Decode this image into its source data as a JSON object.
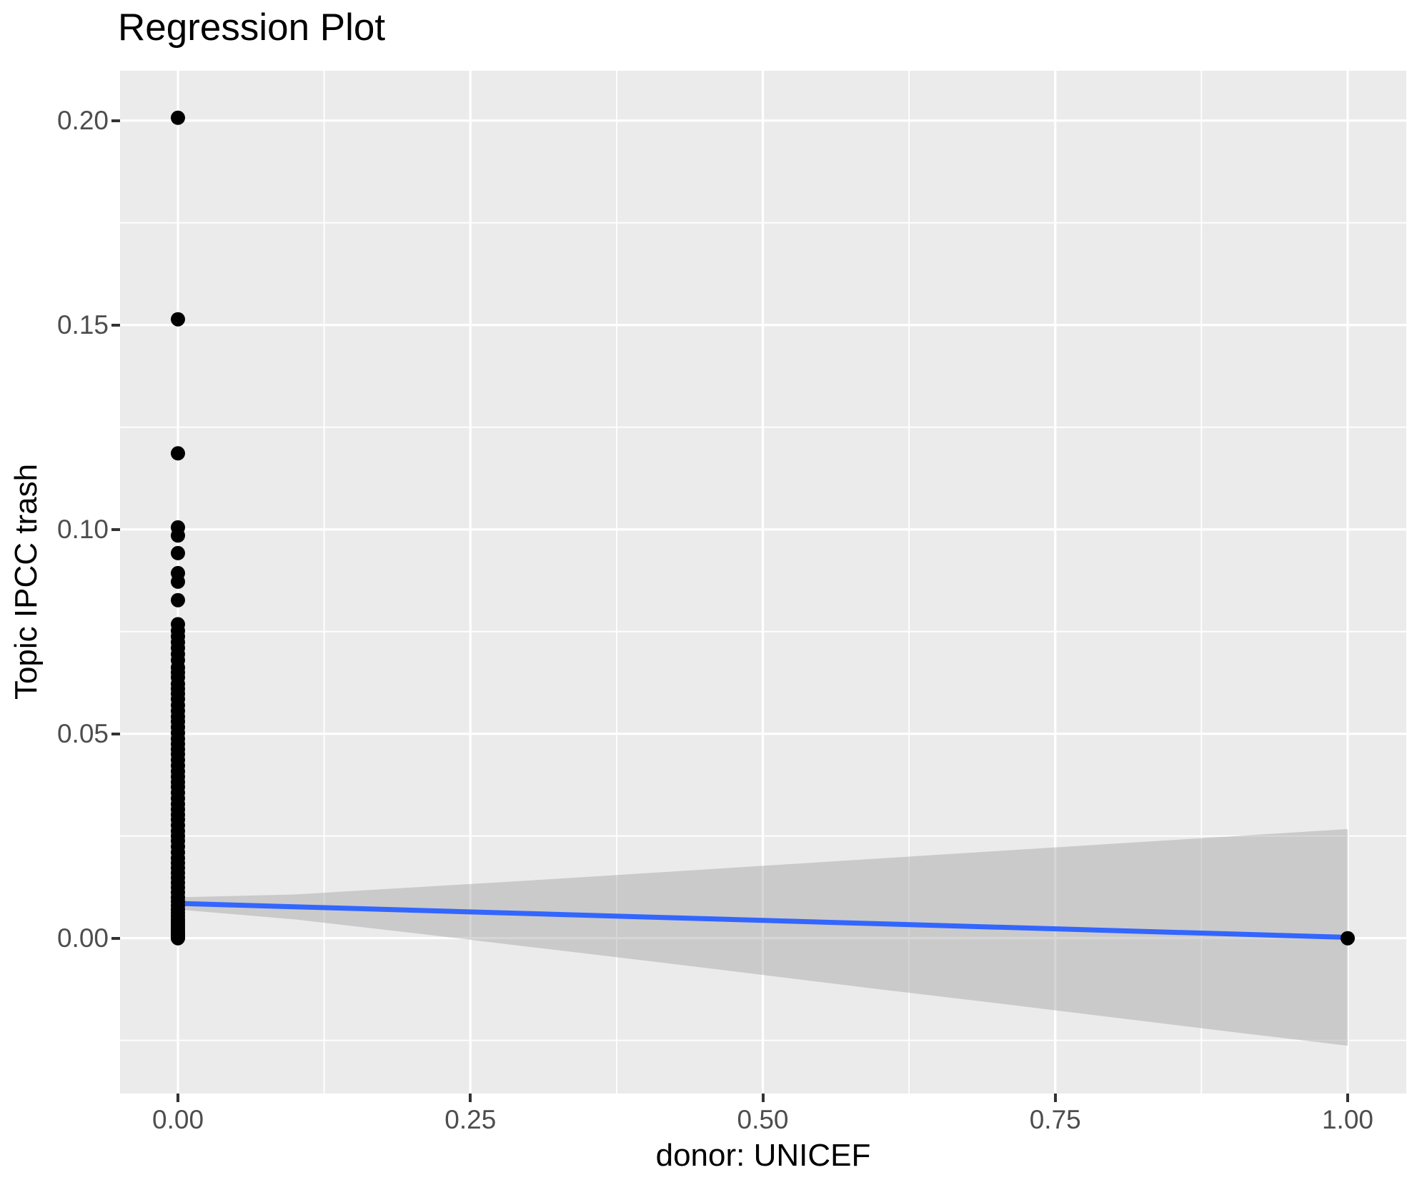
{
  "title": "Regression Plot",
  "chart_data": {
    "type": "scatter",
    "title": "Regression Plot",
    "xlabel": "donor: UNICEF",
    "ylabel": "Topic IPCC trash",
    "grid": true,
    "legend": "none",
    "xlim": [
      -0.0495,
      1.0501
    ],
    "ylim": [
      -0.038,
      0.2122
    ],
    "x_ticks": [
      0.0,
      0.25,
      0.5,
      0.75,
      1.0
    ],
    "x_tick_labels": [
      "0.00",
      "0.25",
      "0.50",
      "0.75",
      "1.00"
    ],
    "y_ticks": [
      0.0,
      0.05,
      0.1,
      0.15,
      0.2
    ],
    "y_tick_labels": [
      "0.00",
      "0.05",
      "0.10",
      "0.15",
      "0.20"
    ],
    "x_minor_ticks": [
      0.125,
      0.375,
      0.625,
      0.875
    ],
    "y_minor_ticks": [
      -0.025,
      0.025,
      0.075,
      0.125,
      0.175
    ],
    "series": [
      {
        "name": "observations",
        "type": "points",
        "color": "#000000",
        "point_radius": 10,
        "groups": [
          {
            "x": 0,
            "ys": [
              0.2007,
              0.1514,
              0.1186,
              0.1005,
              0.0985,
              0.0942,
              0.0893,
              0.0872,
              0.0827,
              0.0768,
              0.0752,
              0.0738,
              0.0724,
              0.071,
              0.0695,
              0.068,
              0.0662,
              0.065,
              0.0638,
              0.0622,
              0.061,
              0.0598,
              0.0585,
              0.057,
              0.0556,
              0.0542,
              0.053,
              0.0516,
              0.0502,
              0.0488,
              0.0475,
              0.0462,
              0.045,
              0.0436,
              0.0422,
              0.0408,
              0.0395,
              0.0382,
              0.037,
              0.0356,
              0.0342,
              0.0328,
              0.0315,
              0.0302,
              0.029,
              0.0276,
              0.0262,
              0.025,
              0.0238,
              0.0224,
              0.021,
              0.0196,
              0.0184,
              0.0172,
              0.016,
              0.0148,
              0.0136,
              0.0124,
              0.0112,
              0.01,
              0.009,
              0.008,
              0.007,
              0.0062,
              0.0054,
              0.0046,
              0.004,
              0.0034,
              0.0028,
              0.0022,
              0.0017,
              0.0012,
              0.0008,
              0.0005,
              0.0003,
              0.0001,
              0.0
            ]
          },
          {
            "x": 1,
            "ys": [
              0.0
            ]
          }
        ]
      },
      {
        "name": "regression-line",
        "type": "line",
        "color": "#3366FF",
        "width": 7,
        "x": [
          0,
          1
        ],
        "y": [
          0.0085,
          0.0002
        ]
      },
      {
        "name": "confidence-band",
        "type": "band",
        "color": "#999999",
        "opacity": 0.4,
        "x": [
          0.0,
          0.1,
          0.2,
          0.3,
          0.4,
          0.5,
          0.6,
          0.7,
          0.8,
          0.9,
          1.0
        ],
        "upper": [
          0.01,
          0.0107,
          0.0124,
          0.0141,
          0.0159,
          0.0177,
          0.0195,
          0.0213,
          0.0231,
          0.0249,
          0.0267
        ],
        "lower": [
          0.007,
          0.0046,
          0.0013,
          -0.0021,
          -0.0055,
          -0.009,
          -0.0125,
          -0.0159,
          -0.0194,
          -0.0229,
          -0.0263
        ]
      }
    ],
    "colors": {
      "panel_background": "#EBEBEB",
      "grid_major": "#FFFFFF",
      "grid_minor": "#FFFFFF",
      "tick_mark": "#333333",
      "tick_label": "#4D4D4D",
      "axis_title": "#000000",
      "plot_title": "#000000",
      "point": "#000000",
      "line": "#3366FF",
      "band": "#999999"
    }
  }
}
